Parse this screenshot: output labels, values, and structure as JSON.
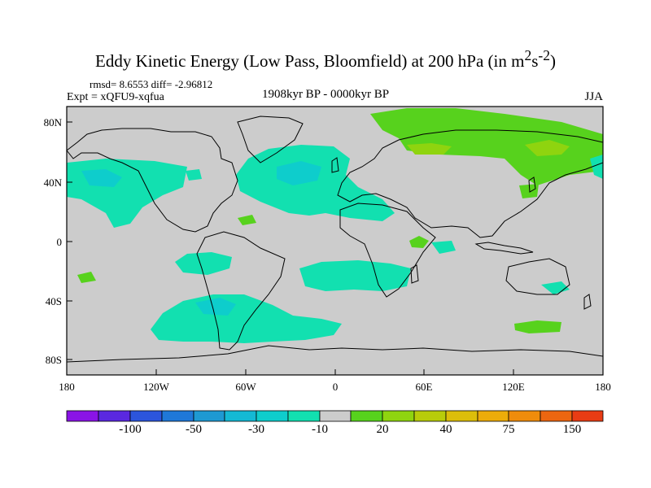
{
  "title": {
    "main": "Eddy Kinetic Energy (Low Pass, Bloomfield) at 200 hPa (in m",
    "sup1": "2",
    "mid": "s",
    "sup2": "-2",
    "end": ")"
  },
  "stats": "rmsd= 8.6553  diff= -2.96812",
  "expt": "Expt = xQFU9-xqfua",
  "period": "1908kyr BP - 0000kyr BP",
  "season": "JJA",
  "map": {
    "lat_labels": [
      "80N",
      "40N",
      "0",
      "40S",
      "80S"
    ],
    "lon_labels": [
      "180",
      "120W",
      "60W",
      "0",
      "60E",
      "120E",
      "180"
    ],
    "background_color": "#cccccc"
  },
  "colorbar": {
    "colors": [
      "#8a14e6",
      "#5a28e0",
      "#2c55dc",
      "#1f78d8",
      "#1e99d2",
      "#14b9d4",
      "#0ecdcc",
      "#12e0b0",
      "#cccccc",
      "#57d21d",
      "#8fd40f",
      "#b8cc0a",
      "#dcbe0a",
      "#ecac0a",
      "#ef8c0c",
      "#ec6610",
      "#e83c14"
    ],
    "labels": [
      "-100",
      "-50",
      "-30",
      "-10",
      "20",
      "40",
      "75",
      "150"
    ]
  },
  "field_colors": {
    "neg_light": "#12e0b0",
    "neg_mid": "#0ecdcc",
    "neg_dark": "#14b9d4",
    "pos_light": "#57d21d",
    "pos_mid": "#8fd40f"
  }
}
